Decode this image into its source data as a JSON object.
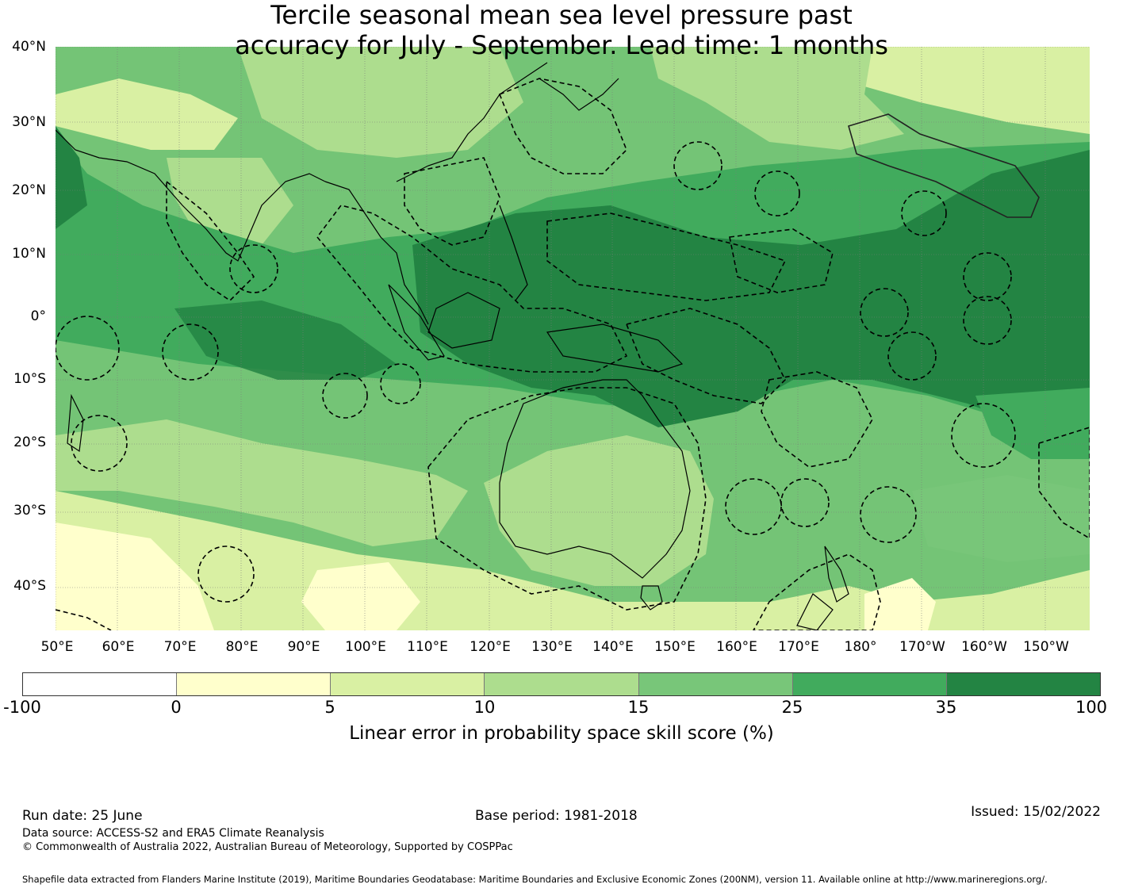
{
  "title": {
    "line1": "Tercile seasonal mean sea level pressure past",
    "line2": "accuracy for July - September. Lead time: 1 months"
  },
  "map": {
    "latitude_labels": [
      "40°N",
      "30°N",
      "20°N",
      "10°N",
      "0°",
      "10°S",
      "20°S",
      "30°S",
      "40°S"
    ],
    "longitude_labels": [
      "50°E",
      "60°E",
      "70°E",
      "80°E",
      "90°E",
      "100°E",
      "110°E",
      "120°E",
      "130°E",
      "140°E",
      "150°E",
      "160°E",
      "170°E",
      "180°",
      "170°W",
      "160°W",
      "150°W"
    ],
    "overlays": [
      "coastlines",
      "maritime-boundaries-dashed"
    ]
  },
  "legend": {
    "ticks": [
      "-100",
      "0",
      "5",
      "10",
      "15",
      "25",
      "35",
      "100"
    ],
    "colors": [
      "#ffffff",
      "#ffffcc",
      "#d9f0a3",
      "#addd8e",
      "#78c679",
      "#41ab5d",
      "#238443"
    ],
    "label": "Linear error in probability space skill score (%)"
  },
  "footer": {
    "run_date": "Run date: 25 June",
    "base_period": "Base period: 1981-2018",
    "issued": "Issued: 15/02/2022",
    "data_source": "Data source: ACCESS-S2 and ERA5 Climate Reanalysis",
    "copyright": "© Commonwealth of Australia 2022, Australian Bureau of Meteorology, Supported by COSPPac",
    "shapefile": "Shapefile data extracted from Flanders Marine Institute (2019), Maritime Boundaries Geodatabase: Maritime Boundaries and Exclusive Economic Zones (200NM), version 11. Available online at http://www.marineregions.org/."
  }
}
